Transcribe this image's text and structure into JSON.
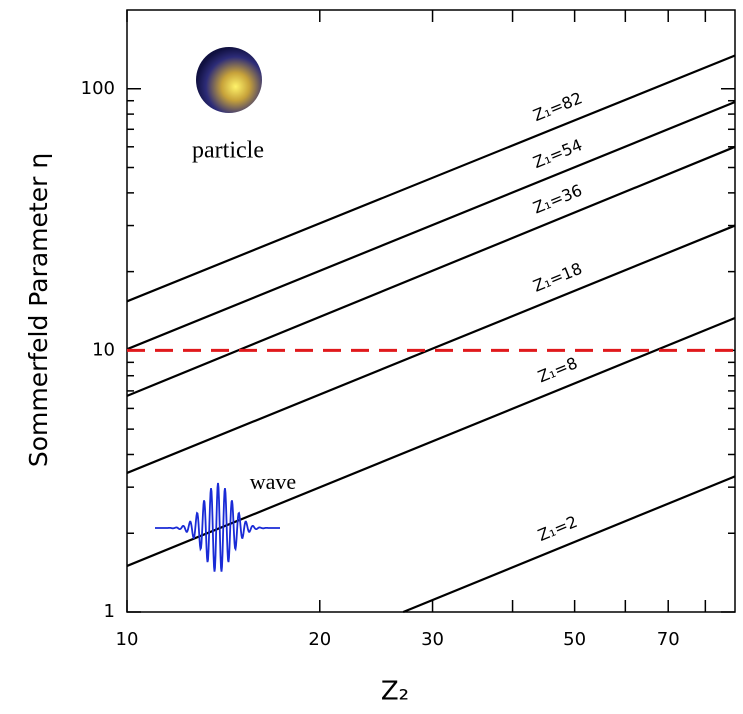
{
  "chart_data": {
    "type": "line",
    "ylabel": "Sommerfeld Parameter η",
    "xlabel": "Z₂",
    "xscale": "log",
    "yscale": "log",
    "xlim": [
      10,
      89
    ],
    "ylim": [
      1,
      200
    ],
    "xticks": [
      10,
      20,
      30,
      50,
      70
    ],
    "xminor_ticks": [
      40,
      60,
      80
    ],
    "yticks": [
      1,
      10,
      100
    ],
    "yminor_ticks": [
      2,
      3,
      4,
      5,
      6,
      7,
      8,
      9,
      20,
      30,
      40,
      50,
      60,
      70,
      80,
      90
    ],
    "series": [
      {
        "name": "Z₁=82",
        "color": "#000000",
        "x": [
          10,
          89
        ],
        "values": [
          15.4,
          134
        ]
      },
      {
        "name": "Z₁=54",
        "color": "#000000",
        "x": [
          10,
          89
        ],
        "values": [
          10.1,
          89
        ]
      },
      {
        "name": "Z₁=36",
        "color": "#000000",
        "x": [
          10,
          89
        ],
        "values": [
          6.7,
          60
        ]
      },
      {
        "name": "Z₁=18",
        "color": "#000000",
        "x": [
          10,
          89
        ],
        "values": [
          3.4,
          30
        ]
      },
      {
        "name": "Z₁=8",
        "color": "#000000",
        "x": [
          10,
          89
        ],
        "values": [
          1.5,
          13.3
        ]
      },
      {
        "name": "Z₁=2",
        "color": "#000000",
        "x": [
          27,
          89
        ],
        "values": [
          1,
          3.3
        ]
      }
    ],
    "reference_line": {
      "value": 10,
      "color": "#e0191c",
      "style": "dashed"
    },
    "annotations": [
      "particle",
      "wave"
    ]
  }
}
